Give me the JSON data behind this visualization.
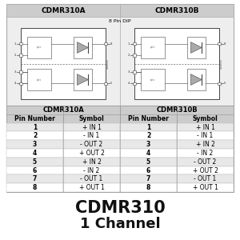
{
  "title": "CDMR310",
  "subtitle": "1 Channel",
  "diagram_label": "8 Pin DIP",
  "col_a_header": "CDMR310A",
  "col_b_header": "CDMR310B",
  "table_headers": [
    "Pin Number",
    "Symbol",
    "Pin Number",
    "Symbol"
  ],
  "table_a": [
    [
      "1",
      "+ IN 1"
    ],
    [
      "2",
      "- IN 1"
    ],
    [
      "3",
      "- OUT 2"
    ],
    [
      "4",
      "+ OUT 2"
    ],
    [
      "5",
      "+ IN 2"
    ],
    [
      "6",
      "- IN 2"
    ],
    [
      "7",
      "- OUT 1"
    ],
    [
      "8",
      "+ OUT 1"
    ]
  ],
  "table_b": [
    [
      "1",
      "+ IN 1"
    ],
    [
      "2",
      "- IN 1"
    ],
    [
      "3",
      "+ IN 2"
    ],
    [
      "4",
      "- IN 2"
    ],
    [
      "5",
      "- OUT 2"
    ],
    [
      "6",
      "+ OUT 2"
    ],
    [
      "7",
      "- OUT 1"
    ],
    [
      "8",
      "+ OUT 1"
    ]
  ],
  "diag_bg": "#eeeeee",
  "diag_hdr_bg": "#cccccc",
  "ic_border": "#444444",
  "ic_fill": "#ffffff",
  "dashed_color": "#666666",
  "row_alt_color": "#e8e8e8",
  "row_white": "#ffffff",
  "tbl_hdr_bg": "#cccccc",
  "tbl_border": "#999999",
  "text_color": "#000000",
  "title_color": "#111111"
}
